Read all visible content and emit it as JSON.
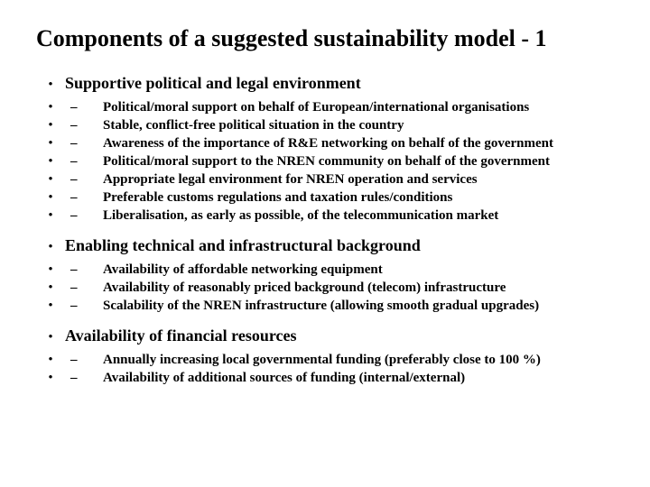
{
  "title": "Components of a suggested sustainability model - 1",
  "sections": [
    {
      "header": "Supportive political and legal environment",
      "items": [
        "Political/moral support on behalf of European/international organisations",
        "Stable, conflict-free political situation in the country",
        "Awareness of the importance of R&E networking on behalf of the government",
        "Political/moral support to the NREN community on behalf of the government",
        "Appropriate legal environment for NREN operation and services",
        "Preferable customs regulations and taxation rules/conditions",
        "Liberalisation, as early as possible, of the telecommunication market"
      ]
    },
    {
      "header": "Enabling technical and infrastructural background",
      "items": [
        "Availability of affordable networking equipment",
        "Availability of reasonably priced background (telecom) infrastructure",
        "Scalability of the NREN infrastructure (allowing smooth gradual upgrades)"
      ]
    },
    {
      "header": "Availability of financial resources",
      "items": [
        "Annually increasing local governmental funding (preferably close to 100 %)",
        "Availability of additional sources of funding (internal/external)"
      ]
    }
  ],
  "glyphs": {
    "bullet": "•",
    "dash": "–"
  },
  "colors": {
    "background": "#ffffff",
    "text": "#000000"
  },
  "typography": {
    "title_fontsize": 26,
    "section_header_fontsize": 18,
    "item_fontsize": 15,
    "font_family": "Times New Roman"
  }
}
